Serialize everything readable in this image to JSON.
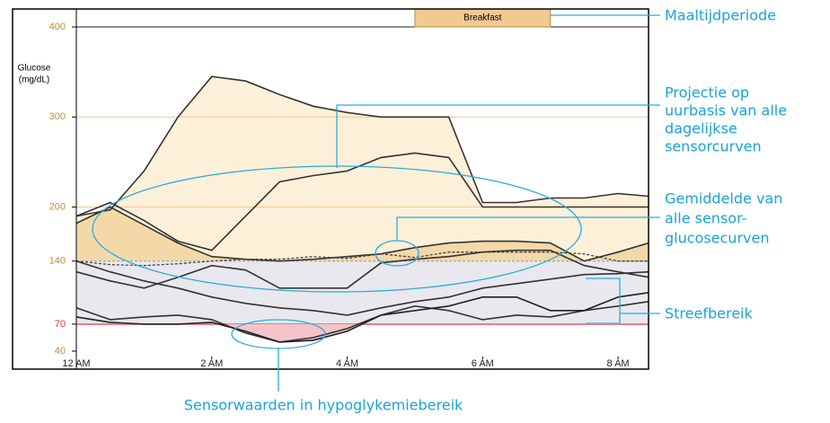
{
  "chart_data": {
    "type": "line",
    "y_label": [
      "Glucose",
      "(mg/dL)"
    ],
    "x": [
      0,
      0.5,
      1,
      1.5,
      2,
      2.5,
      3,
      3.5,
      4,
      4.5,
      5,
      5.5,
      6,
      6.5,
      7,
      7.5,
      8,
      8.45
    ],
    "xlim": [
      0,
      8.45
    ],
    "xticks": [
      {
        "value": 0,
        "label": "12 AM"
      },
      {
        "value": 2,
        "label": "2 AM"
      },
      {
        "value": 4,
        "label": "4 AM"
      },
      {
        "value": 6,
        "label": "6 AM"
      },
      {
        "value": 8,
        "label": "8 AM"
      }
    ],
    "ylim": [
      20,
      420
    ],
    "yticks": [
      40,
      70,
      140,
      200,
      300,
      400
    ],
    "grid": true,
    "target_range": [
      70,
      140
    ],
    "hypo_threshold": 70,
    "meal": {
      "label": "Breakfast",
      "range": [
        5,
        7
      ]
    },
    "series": [
      {
        "color": "#333333",
        "fill": "#fdf0d8",
        "values": [
          190,
          197,
          240,
          300,
          345,
          340,
          325,
          312,
          305,
          300,
          300,
          300,
          205,
          205,
          210,
          210,
          215,
          212
        ]
      },
      {
        "color": "#333333",
        "values": [
          190,
          205,
          185,
          162,
          152,
          190,
          228,
          235,
          240,
          255,
          260,
          255,
          200,
          200,
          200,
          200,
          200,
          200
        ]
      },
      {
        "color": "#333333",
        "fill": "#f3d9a8",
        "values": [
          182,
          200,
          180,
          160,
          145,
          142,
          140,
          142,
          145,
          148,
          155,
          160,
          162,
          162,
          160,
          140,
          150,
          160
        ]
      },
      {
        "color": "#444444",
        "dashed": true,
        "values": [
          140,
          136,
          135,
          137,
          140,
          142,
          142,
          145,
          143,
          148,
          144,
          150,
          150,
          150,
          150,
          148,
          140,
          140
        ]
      },
      {
        "color": "#333333",
        "values": [
          128,
          118,
          110,
          122,
          135,
          130,
          110,
          110,
          110,
          138,
          142,
          145,
          150,
          152,
          152,
          135,
          128,
          122
        ]
      },
      {
        "color": "#333333",
        "values": [
          140,
          128,
          118,
          110,
          100,
          93,
          88,
          85,
          80,
          88,
          95,
          100,
          110,
          115,
          120,
          125,
          126,
          128
        ]
      },
      {
        "color": "#333333",
        "values": [
          88,
          75,
          78,
          80,
          75,
          60,
          50,
          55,
          65,
          80,
          90,
          85,
          75,
          80,
          78,
          85,
          90,
          95
        ]
      },
      {
        "color": "#222222",
        "values": [
          78,
          72,
          70,
          70,
          72,
          62,
          50,
          52,
          62,
          80,
          85,
          90,
          100,
          100,
          85,
          85,
          100,
          105
        ]
      }
    ],
    "annotations": {
      "meal_period": "Maaltijdperiode",
      "projection": [
        "Projectie op",
        "uurbasis van alle",
        "dagelijkse",
        "sensorcurven"
      ],
      "mean": [
        "Gemiddelde van",
        "alle sensor-",
        "glucosecurven"
      ],
      "target": "Streefbereik",
      "hypo": "Sensorwaarden in hypoglykemiebereik"
    }
  }
}
